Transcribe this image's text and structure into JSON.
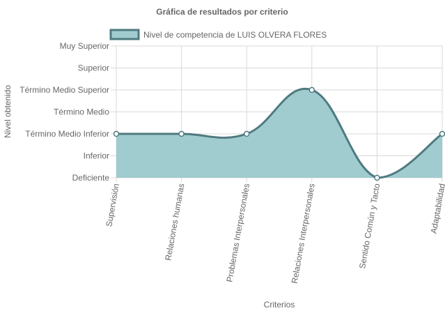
{
  "chart_data": {
    "type": "line",
    "title": "Gráfica de resultados por criterio",
    "xlabel": "Criterios",
    "ylabel": "Nivel obtenido",
    "y_levels": [
      "Deficiente",
      "Inferior",
      "Término Medio Inferior",
      "Término Medio",
      "Término Medio Superior",
      "Superior",
      "Muy Superior"
    ],
    "categories": [
      "Supervisión",
      "Relaciones humanas",
      "Problemas Interpersonales",
      "Relaciones Interpersonales",
      "Sentido Común y Tacto",
      "Adaptabilidad"
    ],
    "series": [
      {
        "name": "Nivel de competencia de LUIS OLVERA FLORES",
        "values": [
          2,
          2,
          2,
          4,
          0,
          2
        ],
        "fill_color": "#a0cbcf",
        "line_color": "#4e7a80"
      }
    ],
    "ylim": [
      0,
      6
    ],
    "legend_position": "top",
    "grid": true,
    "curve": "smooth"
  }
}
